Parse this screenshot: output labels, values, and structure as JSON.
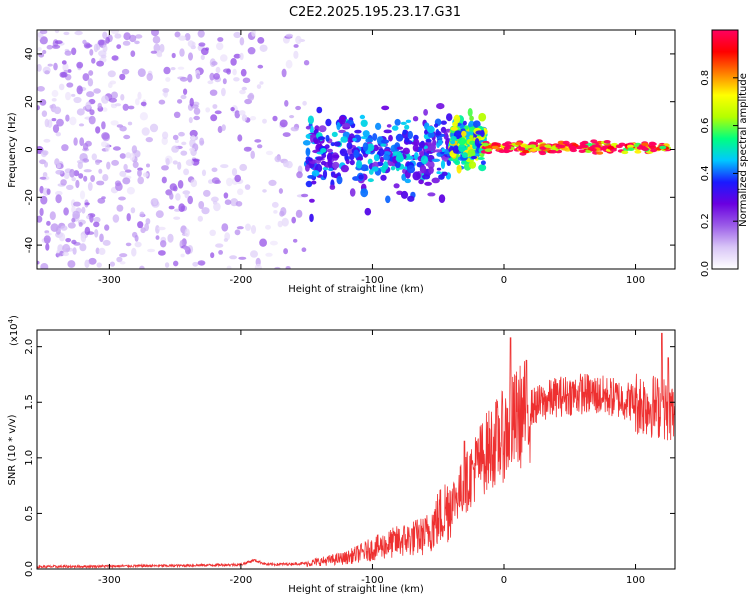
{
  "title": "C2E2.2025.195.23.17.G31",
  "chart_data": [
    {
      "type": "heatmap",
      "xlabel": "Height of straight line (km)",
      "ylabel": "Frequency (Hz)",
      "xlim": [
        -355,
        130
      ],
      "ylim": [
        -50,
        50
      ],
      "xticks": [
        "-300",
        "-200",
        "-100",
        "0",
        "100"
      ],
      "xtick_values": [
        -300,
        -200,
        -100,
        0,
        100
      ],
      "yticks": [
        "-40",
        "-20",
        "0",
        "20",
        "40"
      ],
      "ytick_values": [
        -40,
        -20,
        0,
        20,
        40
      ],
      "colorbar": {
        "label": "Normalized spectral amplitude",
        "range": [
          0,
          1
        ],
        "ticks": [
          "0.0",
          "0.2",
          "0.4",
          "0.6",
          "0.8"
        ],
        "tick_values": [
          0.0,
          0.2,
          0.4,
          0.6,
          0.8
        ],
        "colormap": [
          "#ffffff",
          "#d9c6f7",
          "#9b5ce8",
          "#6a00e0",
          "#1a1aff",
          "#00c8ff",
          "#00ff80",
          "#b4ff00",
          "#ffff00",
          "#ff8000",
          "#ff0000",
          "#ff0060"
        ]
      },
      "bands": [
        {
          "x_start": -355,
          "x_end": -150,
          "freq_spread": 50,
          "amp": 0.12,
          "note_color": "noise"
        },
        {
          "x_start": -150,
          "x_end": -40,
          "freq_center": -2,
          "freq_spread": 8,
          "amp": 0.35
        },
        {
          "x_start": -40,
          "x_end": -15,
          "freq_center": 3,
          "freq_spread": 4,
          "amp": 0.55
        },
        {
          "x_start": -15,
          "x_end": 125,
          "freq_center": 1,
          "freq_spread": 1,
          "amp": 0.92
        }
      ]
    },
    {
      "type": "line",
      "xlabel": "Height of straight line (km)",
      "ylabel": "SNR (10 * v/v)",
      "y_multiplier": "(x10",
      "y_multiplier_exp": "4",
      "y_multiplier_close": ")",
      "xlim": [
        -355,
        130
      ],
      "ylim": [
        0,
        2.15
      ],
      "xticks": [
        "-300",
        "-200",
        "-100",
        "0",
        "100"
      ],
      "xtick_values": [
        -300,
        -200,
        -100,
        0,
        100
      ],
      "yticks": [
        "0.0",
        "0.5",
        "1.0",
        "1.5",
        "2.0"
      ],
      "ytick_values": [
        0,
        0.5,
        1.0,
        1.5,
        2.0
      ],
      "line_color": "#ee3030",
      "trend": [
        [
          -355,
          0.02
        ],
        [
          -250,
          0.03
        ],
        [
          -200,
          0.04
        ],
        [
          -190,
          0.08
        ],
        [
          -180,
          0.04
        ],
        [
          -150,
          0.05
        ],
        [
          -120,
          0.1
        ],
        [
          -100,
          0.18
        ],
        [
          -80,
          0.25
        ],
        [
          -60,
          0.3
        ],
        [
          -50,
          0.45
        ],
        [
          -40,
          0.6
        ],
        [
          -30,
          0.75
        ],
        [
          -20,
          0.95
        ],
        [
          -10,
          1.1
        ],
        [
          0,
          1.2
        ],
        [
          10,
          1.35
        ],
        [
          20,
          1.45
        ],
        [
          40,
          1.55
        ],
        [
          60,
          1.58
        ],
        [
          80,
          1.55
        ],
        [
          100,
          1.5
        ],
        [
          120,
          1.45
        ],
        [
          130,
          1.4
        ]
      ],
      "spikes": [
        [
          5,
          2.08
        ],
        [
          -30,
          1.15
        ],
        [
          120,
          2.12
        ],
        [
          125,
          1.9
        ]
      ]
    }
  ]
}
